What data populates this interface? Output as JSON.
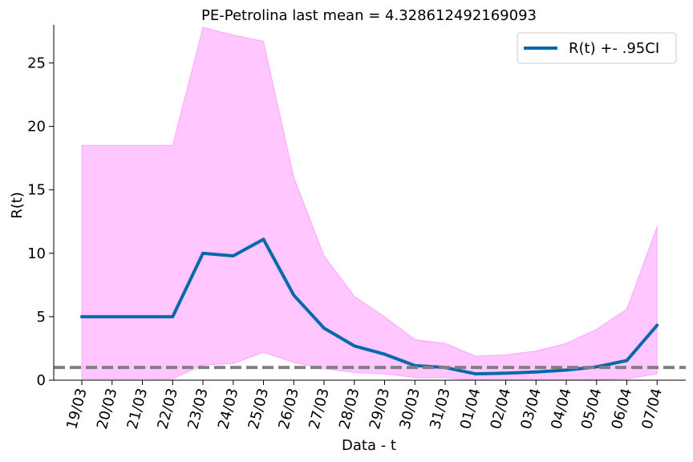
{
  "chart_data": {
    "type": "line",
    "title": "PE-Petrolina last mean = 4.328612492169093",
    "xlabel": "Data - t",
    "ylabel": "R(t)",
    "ylim": [
      0,
      28
    ],
    "yticks": [
      0,
      5,
      10,
      15,
      20,
      25
    ],
    "categories": [
      "19/03",
      "20/03",
      "21/03",
      "22/03",
      "23/03",
      "24/03",
      "25/03",
      "26/03",
      "27/03",
      "28/03",
      "29/03",
      "30/03",
      "31/03",
      "01/04",
      "02/04",
      "03/04",
      "04/04",
      "05/04",
      "06/04",
      "07/04"
    ],
    "series": [
      {
        "name": "R(t) +- .95CI",
        "color": "#0868ac",
        "values": [
          5.0,
          5.0,
          5.0,
          5.0,
          10.0,
          9.8,
          11.1,
          6.7,
          4.1,
          2.7,
          2.05,
          1.15,
          1.0,
          0.5,
          0.55,
          0.65,
          0.8,
          1.05,
          1.55,
          4.33
        ]
      }
    ],
    "band": {
      "color": "#ff80ff",
      "upper": [
        18.5,
        18.5,
        18.5,
        18.5,
        27.8,
        27.2,
        26.7,
        16.0,
        9.8,
        6.6,
        5.0,
        3.2,
        2.9,
        1.9,
        2.0,
        2.3,
        2.9,
        4.0,
        5.6,
        12.1
      ],
      "lower": [
        0.1,
        0.1,
        0.1,
        0.1,
        1.2,
        1.3,
        2.2,
        1.4,
        0.9,
        0.6,
        0.5,
        0.2,
        0.2,
        0.0,
        0.0,
        0.0,
        0.0,
        0.05,
        0.1,
        0.5
      ]
    },
    "reference_line": {
      "value": 1,
      "color": "#808080",
      "style": "dashed"
    },
    "legend_position": "top-right",
    "grid": false
  }
}
